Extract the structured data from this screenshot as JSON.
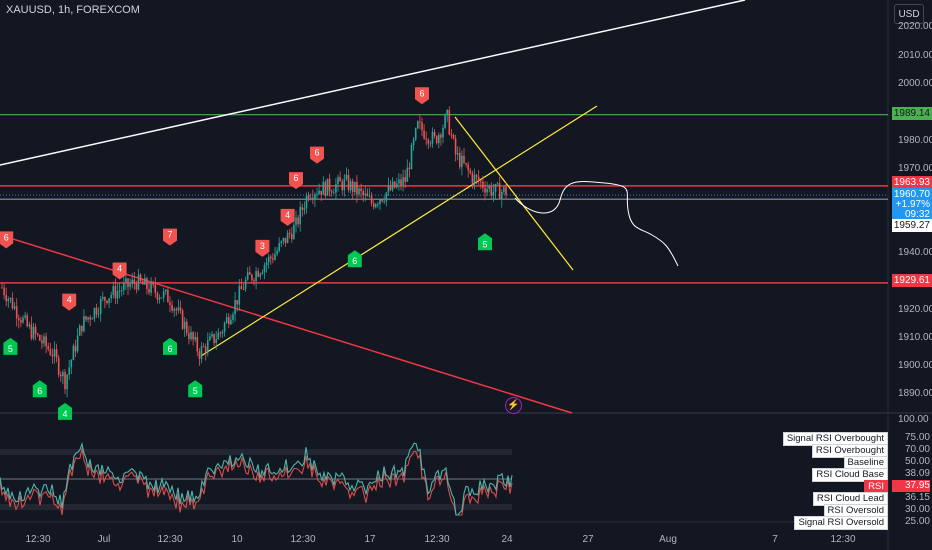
{
  "header": {
    "symbol": "XAUUSD, 1h, FOREXCOM",
    "currency_button": "USD"
  },
  "price_axis": {
    "ticks": [
      "2020.00",
      "2010.00",
      "2000.00",
      "1980.00",
      "1970.00",
      "1940.00",
      "1920.00",
      "1910.00",
      "1900.00",
      "1890.00"
    ]
  },
  "price_tags": {
    "resistance_green": "1989.14",
    "resistance_red": "1963.93",
    "current_price": "1960.70",
    "current_change": "+1.97%",
    "countdown": "09:32",
    "prev_close": "1959.27",
    "support_red": "1929.61"
  },
  "time_axis": {
    "labels": [
      "12:30",
      "Jul",
      "12:30",
      "10",
      "12:30",
      "17",
      "12:30",
      "24",
      "27",
      "Aug",
      "7",
      "12:30"
    ]
  },
  "markers": {
    "sell": [
      {
        "label": "6",
        "time": 1,
        "price": 1945
      },
      {
        "label": "4",
        "time": 16,
        "price": 1923
      },
      {
        "label": "4",
        "time": 28,
        "price": 1934
      },
      {
        "label": "7",
        "time": 40,
        "price": 1946
      },
      {
        "label": "3",
        "time": 62,
        "price": 1942
      },
      {
        "label": "4",
        "time": 68,
        "price": 1953
      },
      {
        "label": "6",
        "time": 70,
        "price": 1966
      },
      {
        "label": "6",
        "time": 75,
        "price": 1975
      },
      {
        "label": "6",
        "time": 100,
        "price": 1996
      }
    ],
    "buy": [
      {
        "label": "5",
        "time": 2,
        "price": 1907
      },
      {
        "label": "6",
        "time": 9,
        "price": 1892
      },
      {
        "label": "4",
        "time": 15,
        "price": 1884
      },
      {
        "label": "6",
        "time": 40,
        "price": 1907
      },
      {
        "label": "5",
        "time": 46,
        "price": 1892
      },
      {
        "label": "6",
        "time": 84,
        "price": 1938
      },
      {
        "label": "5",
        "time": 115,
        "price": 1944
      }
    ]
  },
  "rsi_panel": {
    "top_value": "100.00",
    "items": [
      {
        "name": "Signal RSI Overbought",
        "value": "75.00",
        "highlight": false
      },
      {
        "name": "RSI Overbought",
        "value": "70.00",
        "highlight": false
      },
      {
        "name": "Baseline",
        "value": "50.00",
        "highlight": false
      },
      {
        "name": "RSI Cloud Base",
        "value": "38.09",
        "highlight": false
      },
      {
        "name": "RSI",
        "value": "37.95",
        "highlight": true
      },
      {
        "name": "RSI Cloud Lead",
        "value": "36.15",
        "highlight": false
      },
      {
        "name": "RSI Oversold",
        "value": "30.00",
        "highlight": false
      },
      {
        "name": "Signal RSI Oversold",
        "value": "25.00",
        "highlight": false
      }
    ]
  },
  "colors": {
    "background": "#131722",
    "bull": "#26a69a",
    "bear": "#ef5350",
    "green_level": "#4caf50",
    "red_level": "#f23645",
    "trendline_yellow": "#ffeb3b",
    "current_tag": "#2962ff"
  }
}
